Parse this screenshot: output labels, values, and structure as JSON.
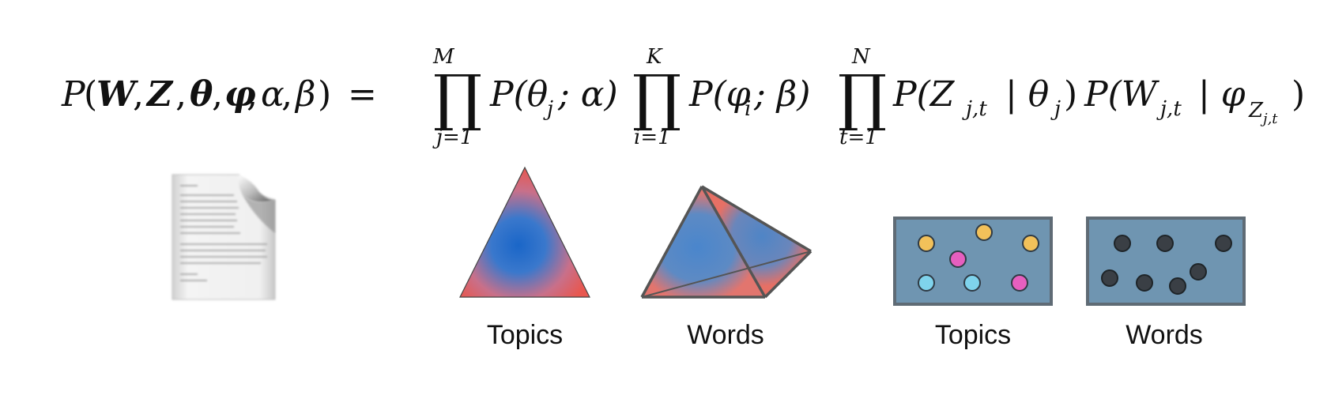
{
  "equation": {
    "lhs": {
      "P": "P",
      "open": "(",
      "W": "W",
      "Z": "Z",
      "theta": "θ",
      "phi": "φ",
      "sep": ";",
      "alpha": "α",
      "beta": "β",
      "close": ")",
      "comma": ",",
      "equals": "="
    },
    "products": [
      {
        "upper": "M",
        "lower": "j=1",
        "term": "P(θ",
        "sub": "j",
        "rest": "; α)"
      },
      {
        "upper": "K",
        "lower": "i=1",
        "term": "P(φ",
        "sub": "i",
        "rest": "; β)"
      },
      {
        "upper": "N",
        "lower": "t=1"
      }
    ],
    "last_terms": {
      "t1_a": "P(Z",
      "t1_sub": "j,t",
      "t1_b": "| θ",
      "t1_sub2": "j",
      "t1_c": ")",
      "t2_a": "P(W",
      "t2_sub": "j,t",
      "t2_b": "| φ",
      "t2_subZ": "Z",
      "t2_subsub": "j,t",
      "t2_c": ")"
    },
    "prod_symbol": "∏"
  },
  "captions": {
    "topics_simplex": "Topics",
    "words_simplex": "Words",
    "topics_box": "Topics",
    "words_box": "Words"
  },
  "colors": {
    "simplex_red": "#e8574f",
    "simplex_blue": "#1a66c8",
    "box_fill": "#6f95b1",
    "box_border": "#5f6b75",
    "dot_yellow": "#f2c15a",
    "dot_pink": "#e65fbf",
    "dot_cyan": "#7fd3ec",
    "dot_dark": "#3a3f45"
  }
}
